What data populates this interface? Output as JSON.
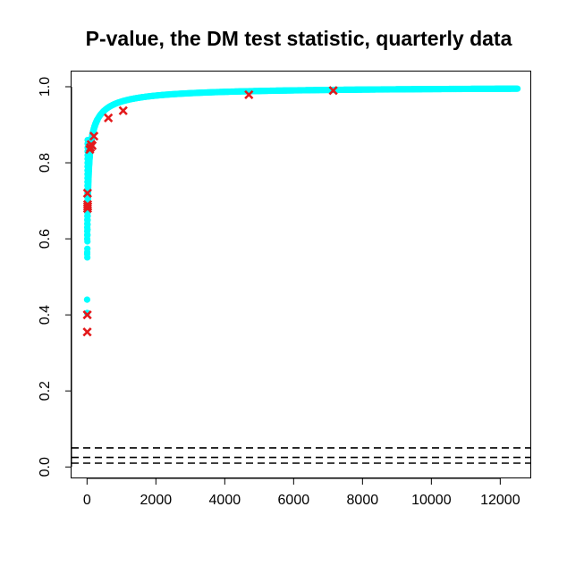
{
  "chart_data": {
    "type": "scatter",
    "title": "P-value, the DM test statistic, quarterly data",
    "xlabel": "",
    "ylabel": "",
    "xlim": [
      -450,
      12900
    ],
    "ylim": [
      -0.03,
      1.04
    ],
    "x_ticks": [
      0,
      2000,
      4000,
      6000,
      8000,
      10000,
      12000
    ],
    "y_ticks": [
      0.0,
      0.2,
      0.4,
      0.6,
      0.8,
      1.0
    ],
    "x_tick_labels": [
      "0",
      "2000",
      "4000",
      "6000",
      "8000",
      "10000",
      "12000"
    ],
    "y_tick_labels": [
      "0.0",
      "0.2",
      "0.4",
      "0.6",
      "0.8",
      "1.0"
    ],
    "reference_lines": {
      "style": "dashed",
      "color": "#000000",
      "y": [
        0.01,
        0.025,
        0.05
      ]
    },
    "curve_series": {
      "color": "#00FFFF",
      "marker": "filled-circle",
      "x_min": 0,
      "x_max": 12500,
      "scattered_low_points": [
        [
          2,
          0.44
        ],
        [
          3,
          0.405
        ],
        [
          4,
          0.56
        ],
        [
          5,
          0.565
        ]
      ]
    },
    "highlight_series": {
      "color": "#E31A1C",
      "marker": "x",
      "points": [
        [
          5,
          0.355
        ],
        [
          7,
          0.4
        ],
        [
          14,
          0.68
        ],
        [
          16,
          0.69
        ],
        [
          18,
          0.685
        ],
        [
          12,
          0.72
        ],
        [
          80,
          0.835
        ],
        [
          100,
          0.84
        ],
        [
          120,
          0.848
        ],
        [
          150,
          0.845
        ],
        [
          200,
          0.87
        ],
        [
          620,
          0.918
        ],
        [
          1050,
          0.937
        ],
        [
          4700,
          0.979
        ],
        [
          7150,
          0.99
        ]
      ]
    },
    "grid": false,
    "legend": "none"
  }
}
